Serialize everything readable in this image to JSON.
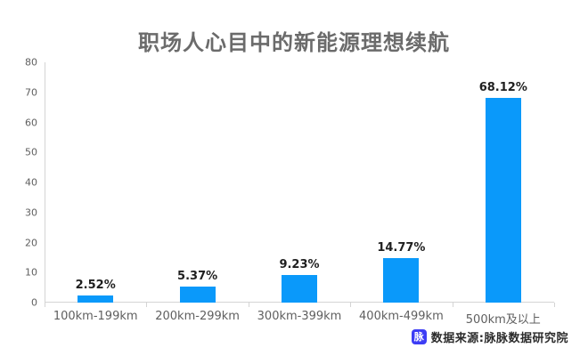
{
  "title": "职场人心目中的新能源理想续航",
  "chart_data": {
    "type": "bar",
    "title": "职场人心目中的新能源理想续航",
    "categories": [
      "100km-199km",
      "200km-299km",
      "300km-399km",
      "400km-499km",
      "500km及以上"
    ],
    "values": [
      2.52,
      5.37,
      9.23,
      14.77,
      68.12
    ],
    "value_labels": [
      "2.52%",
      "5.37%",
      "9.23%",
      "14.77%",
      "68.12%"
    ],
    "xlabel": "",
    "ylabel": "",
    "ylim": [
      0,
      80
    ],
    "y_ticks": [
      0,
      10,
      20,
      30,
      40,
      50,
      60,
      70,
      80
    ],
    "grid": "off",
    "legend": "none",
    "bar_color": "#0a99fa"
  },
  "colors": {
    "bar": "#0a99fa",
    "axis_line": "#d4d4d4",
    "tick_text": "#5f5f5f",
    "value_label": "#1f1f1f",
    "title_text": "#6b6b6b",
    "footer_icon_bg": "#3d3df5",
    "footer_icon_fg": "#ffffff"
  },
  "footer": {
    "icon_glyph": "脉",
    "source_text": "数据来源:脉脉数据研究院"
  }
}
